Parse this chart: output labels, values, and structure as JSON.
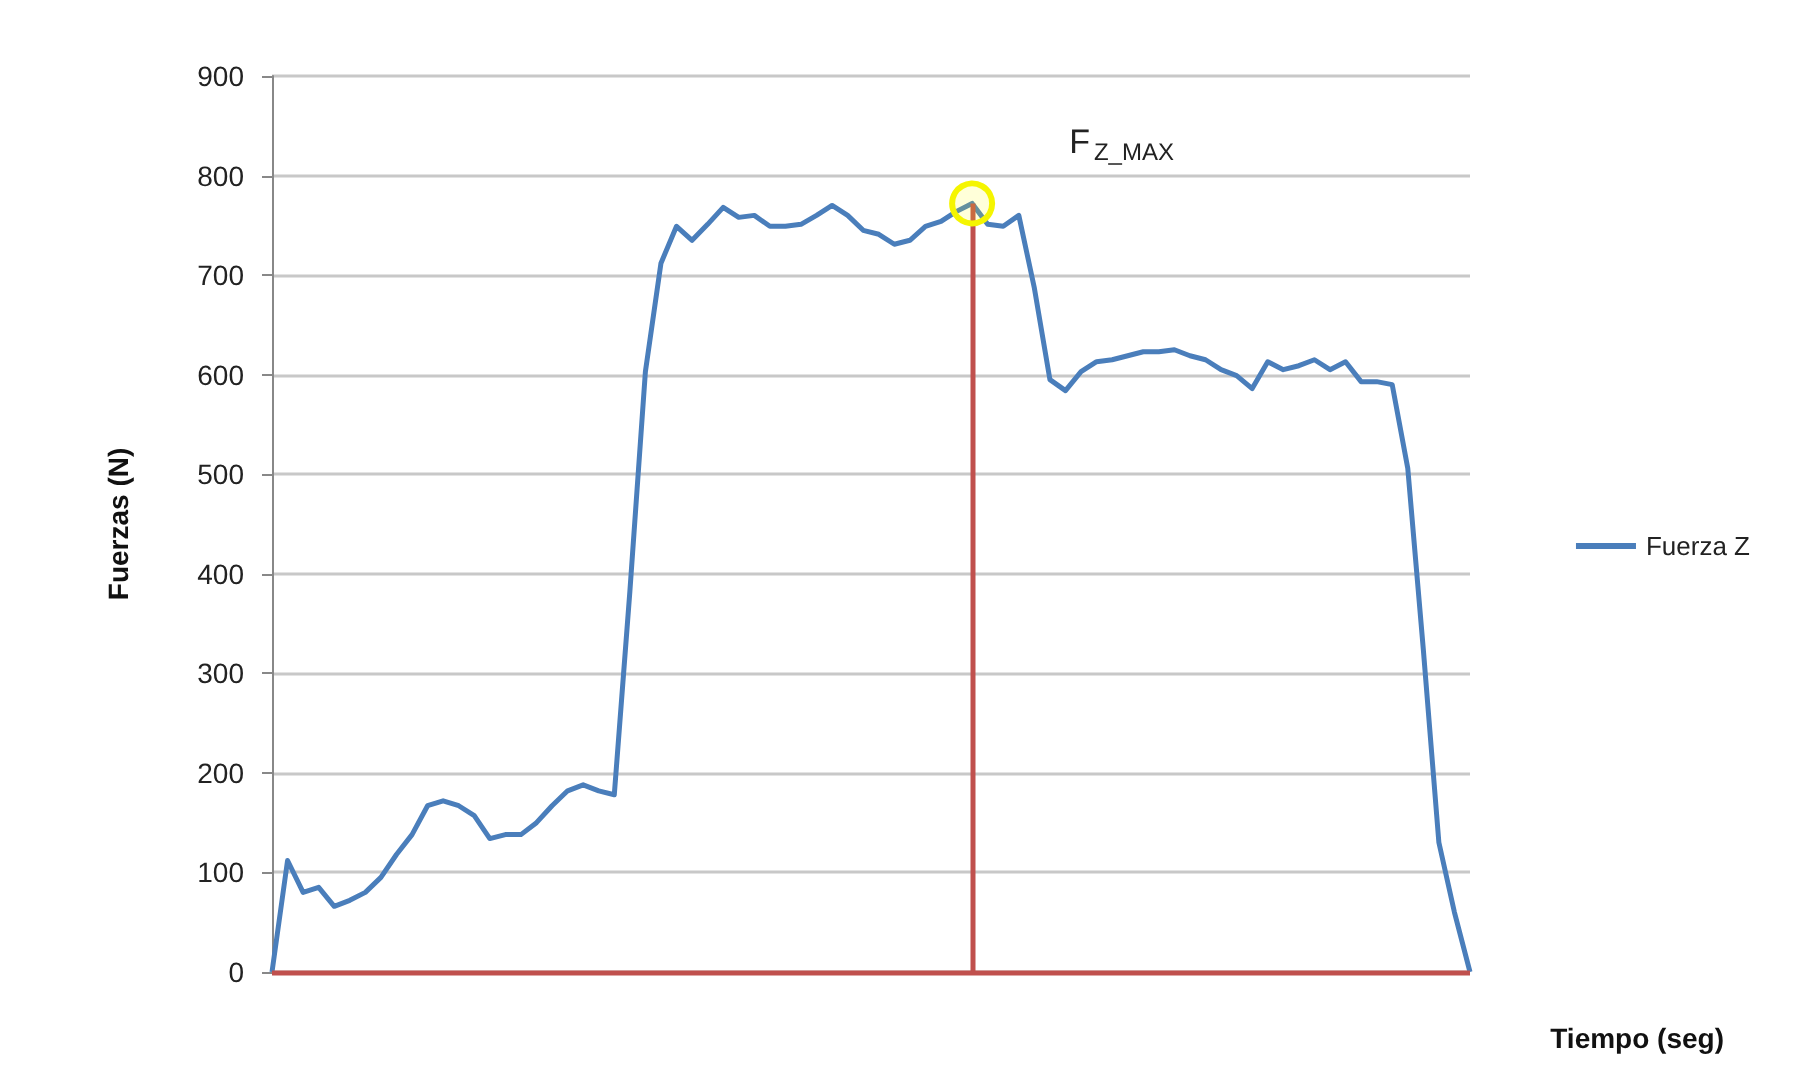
{
  "chart_data": {
    "type": "line",
    "xlabel": "Tiempo (seg)",
    "ylabel": "Fuerzas (N)",
    "categories": [
      null,
      null,
      null,
      null,
      null,
      null,
      null,
      null,
      null,
      null,
      null,
      null,
      null,
      null,
      null,
      null,
      null,
      null,
      null,
      null,
      null,
      null,
      null,
      null,
      null,
      null,
      null,
      null,
      null,
      null,
      null,
      null,
      null,
      null,
      null,
      null,
      null,
      null,
      null,
      null,
      null,
      null,
      null,
      null,
      null,
      null,
      null,
      null,
      null,
      null,
      null,
      null,
      null,
      null,
      null,
      null,
      null,
      null,
      null,
      null,
      null,
      null,
      null,
      null,
      null,
      null,
      null,
      null,
      null,
      null,
      null,
      null,
      null,
      null,
      null,
      null,
      null,
      null
    ],
    "series": [
      {
        "name": "Fuerza Z",
        "color": "#4a7ebb",
        "values": [
          0,
          112,
          80,
          85,
          66,
          72,
          80,
          95,
          118,
          138,
          167,
          172,
          167,
          157,
          134,
          138,
          138,
          150,
          167,
          182,
          188,
          182,
          178,
          382,
          603,
          712,
          749,
          735,
          751,
          768,
          758,
          760,
          749,
          749,
          751,
          760,
          770,
          760,
          745,
          741,
          731,
          735,
          749,
          754,
          764,
          772,
          751,
          749,
          760,
          687,
          595,
          584,
          603,
          613,
          615,
          619,
          623,
          623,
          625,
          619,
          615,
          605,
          599,
          586,
          613,
          605,
          609,
          615,
          605,
          613,
          593,
          593,
          590,
          506,
          324,
          130,
          60,
          0
        ]
      }
    ],
    "ylim": [
      0,
      900
    ],
    "yticks": [
      0,
      100,
      200,
      300,
      400,
      500,
      600,
      700,
      800,
      900
    ],
    "grid": "y",
    "legend": "right",
    "marker": "none",
    "line_style": "solid",
    "ref_lines": [
      {
        "axis": "y",
        "value": 0,
        "color": "#c0504d"
      }
    ],
    "annotations": [
      "F$_{Z_MAX}$"
    ]
  }
}
